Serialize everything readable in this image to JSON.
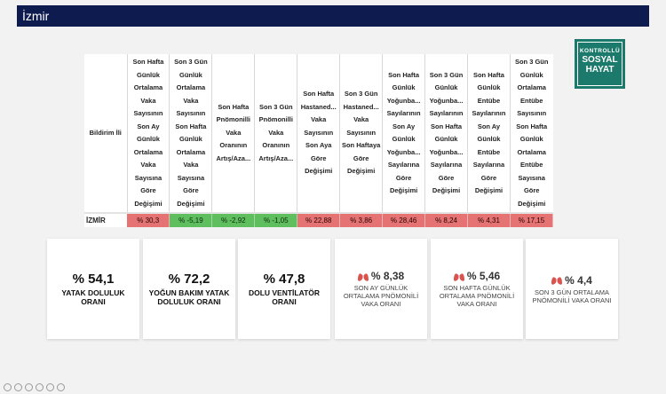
{
  "page": {
    "title": "İzmir"
  },
  "logo": {
    "line1": "KONTROLLÜ",
    "line2": "SOSYAL",
    "line3": "HAYAT"
  },
  "table": {
    "headers": [
      "Bildirim İli",
      "Son Hafta Günlük Ortalama Vaka Sayısının Son Ay Günlük Ortalama Vaka Sayısına Göre Değişimi",
      "Son 3 Gün Günlük Ortalama Vaka Sayısının Son Hafta Günlük Ortalama Vaka Sayısına Göre Değişimi",
      "Son Hafta Pnömonilli Vaka Oranının Artış/Aza...",
      "Son 3 Gün Pnömonilli Vaka Oranının Artış/Aza...",
      "Son Hafta Hastaned... Vaka Sayısının Son Aya Göre Değişimi",
      "Son 3 Gün Hastaned... Vaka Sayısının Son Haftaya Göre Değişimi",
      "Son Hafta Günlük Yoğunba... Sayılarının Son Ay Günlük Yoğunba... Sayılarına Göre Değişimi",
      "Son 3 Gün Günlük Yoğunba... Sayılarının Son Hafta Günlük Yoğunba... Sayılarına Göre Değişimi",
      "Son Hafta Günlük Entübe Sayılarının Son Ay Günlük Entübe Sayılarına Göre Değişimi",
      "Son 3 Gün Günlük Ortalama Entübe Sayısının Son Hafta Günlük Ortalama Entübe Sayısına Göre Değişimi"
    ],
    "row": {
      "name": "İZMİR",
      "cells": [
        "% 30,3",
        "% -5,19",
        "% -2,92",
        "% -1,05",
        "% 22,88",
        "% 3,86",
        "% 28,46",
        "% 8,24",
        "% 4,31",
        "% 17,15"
      ],
      "colors": [
        "red",
        "green",
        "green",
        "green",
        "red",
        "red",
        "red",
        "red",
        "red",
        "red"
      ]
    }
  },
  "cards": [
    {
      "value": "% 54,1",
      "label": "YATAK DOLULUK ORANI"
    },
    {
      "value": "% 72,2",
      "label": "YOĞUN BAKIM YATAK DOLULUK ORANI"
    },
    {
      "value": "% 47,8",
      "label": "DOLU VENTİLATÖR ORANI"
    },
    {
      "value": "% 8,38",
      "label": "SON AY GÜNLÜK ORTALAMA PNÖMONİLİ VAKA ORANI",
      "icon": "lungs-icon"
    },
    {
      "value": "% 5,46",
      "label": "SON HAFTA GÜNLÜK ORTALAMA PNÖMONİLİ VAKA ORANI",
      "icon": "lungs-icon"
    },
    {
      "value": "% 4,4",
      "label": "SON 3 GÜN ORTALAMA PNÖMONİLİ VAKA ORANI",
      "icon": "lungs-icon"
    }
  ],
  "colors": {
    "title_bar": "#0d1b4f",
    "red_cell": "#e57373",
    "green_cell": "#5fbf5f",
    "logo": "#1b7a6b",
    "lungs": "#d9534f"
  }
}
